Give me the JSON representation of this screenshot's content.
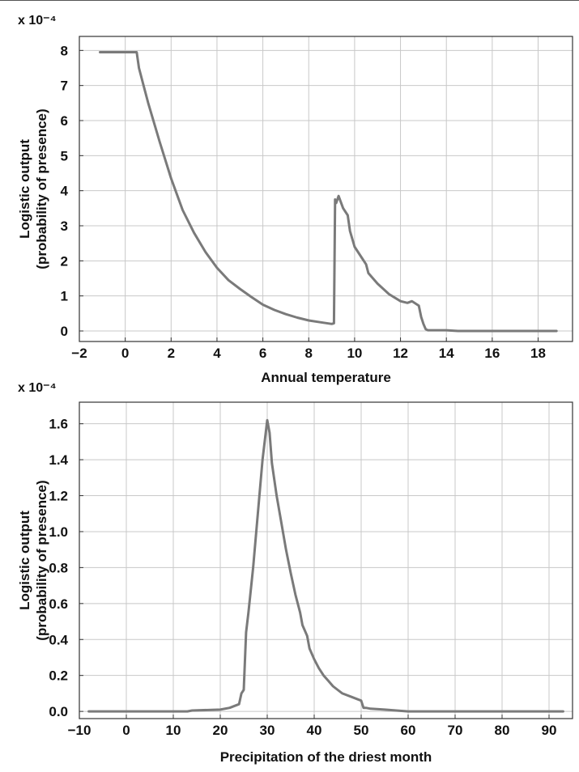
{
  "chart_data": [
    {
      "type": "line",
      "multiplier_label": "x 10⁻⁴",
      "xlabel": "Annual temperature",
      "ylabel_line1": "Logistic output",
      "ylabel_line2": "(probability of presence)",
      "xlim": [
        -2,
        19.5
      ],
      "ylim": [
        -0.3,
        8.4
      ],
      "xticks": [
        -2,
        0,
        2,
        4,
        6,
        8,
        10,
        12,
        14,
        16,
        18
      ],
      "xtick_labels": [
        "−2",
        "0",
        "2",
        "4",
        "6",
        "8",
        "10",
        "12",
        "14",
        "16",
        "18"
      ],
      "yticks": [
        0,
        1,
        2,
        3,
        4,
        5,
        6,
        7,
        8
      ],
      "ytick_labels": [
        "0",
        "1",
        "2",
        "3",
        "4",
        "5",
        "6",
        "7",
        "8"
      ],
      "grid": true,
      "line_color": "#7a7a7a",
      "series": [
        {
          "x": [
            -1.1,
            0.4,
            0.5,
            0.6,
            0.8,
            1.0,
            1.5,
            2.0,
            2.5,
            3.0,
            3.5,
            4.0,
            4.5,
            5.0,
            5.5,
            6.0,
            6.5,
            7.0,
            7.5,
            8.0,
            8.5,
            9.0,
            9.1,
            9.15,
            9.2,
            9.3,
            9.5,
            9.7,
            9.8,
            10.0,
            10.3,
            10.5,
            10.6,
            11.0,
            11.5,
            12.0,
            12.3,
            12.5,
            12.8,
            12.9,
            13.0,
            13.1,
            13.2,
            14.0,
            14.5,
            16.0,
            18.8
          ],
          "y": [
            7.95,
            7.95,
            7.95,
            7.5,
            7.0,
            6.5,
            5.4,
            4.35,
            3.45,
            2.8,
            2.25,
            1.8,
            1.45,
            1.2,
            0.97,
            0.75,
            0.6,
            0.48,
            0.38,
            0.3,
            0.25,
            0.2,
            0.22,
            3.75,
            3.65,
            3.85,
            3.5,
            3.3,
            2.85,
            2.4,
            2.1,
            1.9,
            1.65,
            1.35,
            1.05,
            0.85,
            0.8,
            0.85,
            0.72,
            0.4,
            0.2,
            0.05,
            0.02,
            0.02,
            0.0,
            0.0,
            0.0
          ]
        }
      ]
    },
    {
      "type": "line",
      "multiplier_label": "x 10⁻⁴",
      "xlabel": "Precipitation of the driest month",
      "ylabel_line1": "Logistic output",
      "ylabel_line2": "(probability of presence)",
      "xlim": [
        -10,
        95
      ],
      "ylim": [
        -0.04,
        1.72
      ],
      "xticks": [
        -10,
        0,
        10,
        20,
        30,
        40,
        50,
        60,
        70,
        80,
        90
      ],
      "xtick_labels": [
        "−10",
        "0",
        "10",
        "20",
        "30",
        "40",
        "50",
        "60",
        "70",
        "80",
        "90"
      ],
      "yticks": [
        0,
        0.2,
        0.4,
        0.6,
        0.8,
        1.0,
        1.2,
        1.4,
        1.6
      ],
      "ytick_labels": [
        "0.0",
        "0.2",
        "0.4",
        "0.6",
        "0.8",
        "1.0",
        "1.2",
        "1.4",
        "1.6"
      ],
      "grid": true,
      "line_color": "#7a7a7a",
      "series": [
        {
          "x": [
            -8,
            13,
            14,
            20,
            22,
            24,
            24.5,
            25,
            25.5,
            26,
            27,
            28,
            29,
            30,
            30.5,
            31,
            32,
            33,
            34,
            35,
            36,
            37,
            37.5,
            38,
            38.5,
            39,
            40,
            41,
            42,
            43,
            44,
            45,
            46,
            48,
            50,
            50.5,
            51,
            52,
            55,
            60,
            70,
            93
          ],
          "y": [
            0.0,
            0.0,
            0.005,
            0.01,
            0.02,
            0.04,
            0.1,
            0.12,
            0.44,
            0.55,
            0.8,
            1.1,
            1.4,
            1.62,
            1.55,
            1.38,
            1.2,
            1.05,
            0.9,
            0.77,
            0.65,
            0.55,
            0.48,
            0.45,
            0.42,
            0.35,
            0.29,
            0.24,
            0.2,
            0.17,
            0.14,
            0.12,
            0.1,
            0.08,
            0.06,
            0.02,
            0.02,
            0.015,
            0.01,
            0.0,
            0.0,
            0.0
          ]
        }
      ]
    }
  ]
}
